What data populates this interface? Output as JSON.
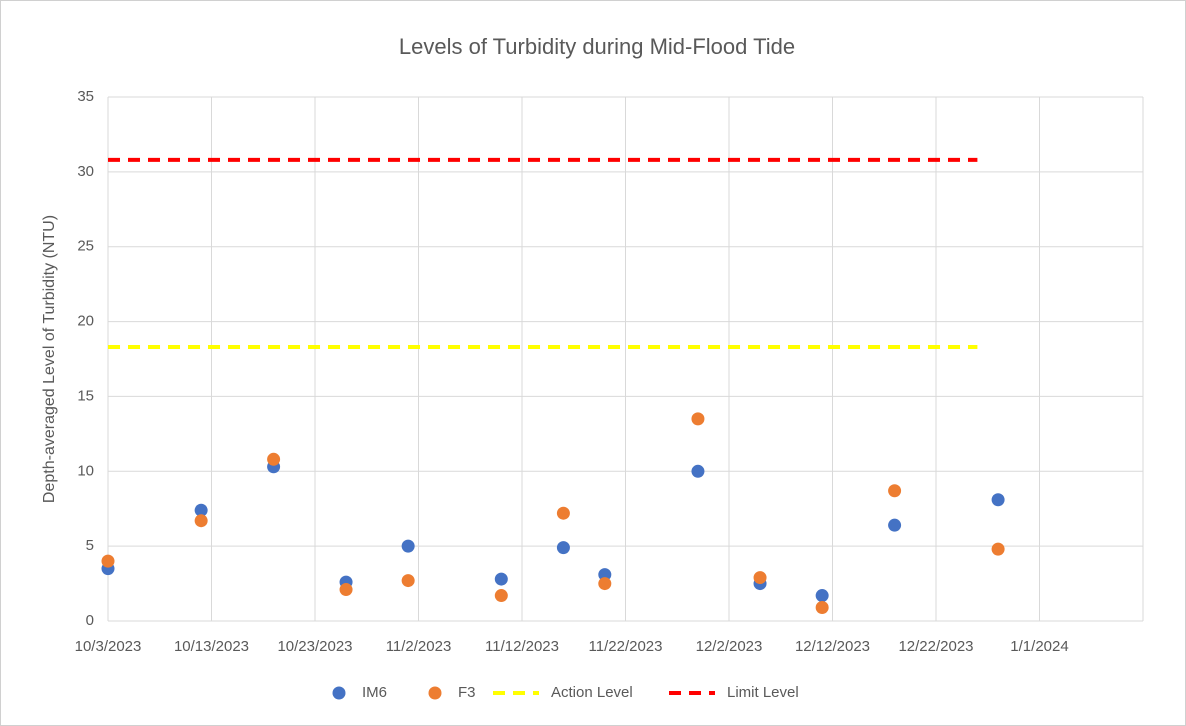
{
  "chart_data": {
    "type": "scatter",
    "title": "Levels of Turbidity during Mid-Flood Tide",
    "y_label": "Depth-averaged Level of  Turbidity (NTU)",
    "xlim": [
      "10/3/2023",
      "1/11/2024"
    ],
    "xticks": [
      "10/3/2023",
      "10/13/2023",
      "10/23/2023",
      "11/2/2023",
      "11/12/2023",
      "11/22/2023",
      "12/2/2023",
      "12/12/2023",
      "12/22/2023",
      "1/1/2024"
    ],
    "ylim": [
      0,
      35
    ],
    "yticks": [
      0,
      5,
      10,
      15,
      20,
      25,
      30,
      35
    ],
    "grid": true,
    "legend": "bottom",
    "series": [
      {
        "name": "IM6",
        "color": "#4472c4",
        "style": "marker",
        "x": [
          "10/3/2023",
          "10/12/2023",
          "10/19/2023",
          "10/26/2023",
          "11/1/2023",
          "11/10/2023",
          "11/16/2023",
          "11/20/2023",
          "11/29/2023",
          "12/5/2023",
          "12/11/2023",
          "12/18/2023",
          "12/28/2023"
        ],
        "values": [
          3.5,
          7.4,
          10.3,
          2.6,
          5.0,
          2.8,
          4.9,
          3.1,
          10.0,
          2.5,
          1.7,
          6.4,
          8.1
        ]
      },
      {
        "name": "F3",
        "color": "#ed7d31",
        "style": "marker",
        "x": [
          "10/3/2023",
          "10/12/2023",
          "10/19/2023",
          "10/26/2023",
          "11/1/2023",
          "11/10/2023",
          "11/16/2023",
          "11/20/2023",
          "11/29/2023",
          "12/5/2023",
          "12/11/2023",
          "12/18/2023",
          "12/28/2023"
        ],
        "values": [
          4.0,
          6.7,
          10.8,
          2.1,
          2.7,
          1.7,
          7.2,
          2.5,
          13.5,
          2.9,
          0.9,
          8.7,
          4.8
        ]
      },
      {
        "name": "Action Level",
        "color": "#ffff00",
        "style": "dashed",
        "x": [
          "10/3/2023",
          "12/26/2023"
        ],
        "values": [
          18.3,
          18.3
        ]
      },
      {
        "name": "Limit Level",
        "color": "#ff0000",
        "style": "dashed",
        "x": [
          "10/3/2023",
          "12/26/2023"
        ],
        "values": [
          30.8,
          30.8
        ]
      }
    ]
  }
}
